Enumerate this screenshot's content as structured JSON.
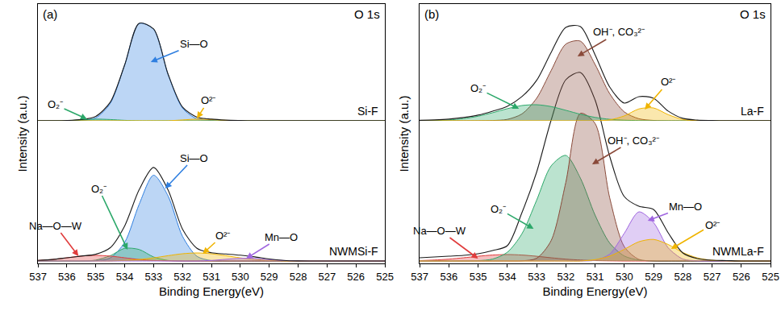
{
  "chart_data": [
    {
      "type": "line",
      "panel_label": "(a)",
      "corner_label": "O 1s",
      "x_label": "Binding Energy(eV)",
      "y_label": "Intensity (a.u.)",
      "grid": false,
      "tick_labels": "x",
      "xlim": [
        537,
        525
      ],
      "xticks": [
        537,
        536,
        535,
        534,
        533,
        532,
        531,
        530,
        529,
        528,
        527,
        526,
        525
      ],
      "x": [
        537,
        536.5,
        536,
        535.5,
        535,
        534.5,
        534,
        533.5,
        533,
        532.5,
        532,
        531.5,
        531,
        530.5,
        530,
        529.5,
        529,
        528.5,
        528,
        527.5,
        527,
        526.5,
        526,
        525.5,
        525
      ],
      "spectra": [
        {
          "name": "Si-F",
          "ylim": [
            0,
            145
          ],
          "envelope": {
            "color": "#1a1a1a",
            "values": [
              0,
              0,
              0.3,
              1.5,
              5.5,
              23,
              69.5,
              121,
              114,
              58,
              17,
              4.5,
              2,
              0.8,
              0.3,
              0,
              0,
              0,
              0,
              0,
              0,
              0,
              0,
              0,
              0
            ]
          },
          "components": [
            {
              "name": "Si—O",
              "color": "#2f7fe0",
              "values": [
                0,
                0,
                0,
                0.3,
                3.6,
                21.5,
                69.4,
                120.9,
                113.6,
                57.7,
                15.8,
                2.3,
                0.2,
                0,
                0,
                0,
                0,
                0,
                0,
                0,
                0,
                0,
                0,
                0,
                0
              ]
            },
            {
              "name": "O₂⁻",
              "color": "#2ca86a",
              "values": [
                0,
                0,
                0.2,
                1,
                2,
                1.5,
                0.5,
                0,
                0,
                0,
                0,
                0,
                0,
                0,
                0,
                0,
                0,
                0,
                0,
                0,
                0,
                0,
                0,
                0,
                0
              ]
            },
            {
              "name": "O²⁻",
              "color": "#f0b400",
              "values": [
                0,
                0,
                0,
                0,
                0,
                0,
                0,
                0,
                0,
                0,
                1,
                2,
                1.5,
                0.5,
                0,
                0,
                0,
                0,
                0,
                0,
                0,
                0,
                0,
                0,
                0
              ]
            }
          ]
        },
        {
          "name": "NWMSi-F",
          "ylim": [
            -3,
            319
          ],
          "envelope": {
            "color": "#1a1a1a",
            "values": [
              0.7,
              1.9,
              4,
              6.1,
              8.4,
              16.5,
              43.6,
              88.4,
              116.1,
              88.3,
              39.6,
              15.8,
              10.2,
              8.7,
              7.2,
              5.1,
              2.5,
              0.8,
              0.1,
              0,
              0,
              0,
              0,
              0,
              0
            ]
          },
          "components": [
            {
              "name": "Si—O",
              "color": "#2f7fe0",
              "values": [
                0,
                0,
                0,
                0,
                0.3,
                3.8,
                23.1,
                70.3,
                106.5,
                80.8,
                30.6,
                5.8,
                0.5,
                0,
                0,
                0,
                0,
                0,
                0,
                0,
                0,
                0,
                0,
                0,
                0
              ]
            },
            {
              "name": "O₂⁻",
              "color": "#2ca86a",
              "values": [
                0,
                0,
                0,
                0,
                1.1,
                6.6,
                15.7,
                14.3,
                5,
                0.7,
                0,
                0,
                0,
                0,
                0,
                0,
                0,
                0,
                0,
                0,
                0,
                0,
                0,
                0,
                0
              ]
            },
            {
              "name": "Na—O—W",
              "color": "#e03c3c",
              "values": [
                0.7,
                1.9,
                4,
                6.1,
                7,
                6.1,
                4,
                1.9,
                0.7,
                0.2,
                0,
                0,
                0,
                0,
                0,
                0,
                0,
                0,
                0,
                0,
                0,
                0,
                0,
                0,
                0
              ]
            },
            {
              "name": "O²⁻",
              "color": "#f0b400",
              "values": [
                0,
                0,
                0,
                0,
                0,
                0,
                0.8,
                1.9,
                3.9,
                6.6,
                9,
                10,
                9,
                6.6,
                3.9,
                1.9,
                0.8,
                0.2,
                0,
                0,
                0,
                0,
                0,
                0,
                0
              ]
            },
            {
              "name": "Mn—O",
              "color": "#a066e0",
              "values": [
                0,
                0,
                0,
                0,
                0,
                0,
                0,
                0,
                0,
                0,
                0,
                0,
                0.7,
                2.1,
                3.3,
                3.2,
                1.7,
                0.6,
                0.1,
                0,
                0,
                0,
                0,
                0,
                0
              ]
            }
          ]
        }
      ]
    },
    {
      "type": "line",
      "panel_label": "(b)",
      "corner_label": "O 1s",
      "x_label": "Binding Energy(eV)",
      "y_label": "Intensity (a.u.)",
      "grid": false,
      "tick_labels": "x",
      "xlim": [
        537,
        525
      ],
      "xticks": [
        537,
        536,
        535,
        534,
        533,
        532,
        531,
        530,
        529,
        528,
        527,
        526,
        525
      ],
      "x": [
        537,
        536.5,
        536,
        535.5,
        535,
        534.5,
        534,
        533.5,
        533,
        532.5,
        532,
        531.5,
        531,
        530.5,
        530,
        529.5,
        529,
        528.5,
        528,
        527.5,
        527,
        526.5,
        526,
        525.5,
        525
      ],
      "spectra": [
        {
          "name": "La-F",
          "ylim": [
            0,
            145
          ],
          "envelope": {
            "color": "#1a1a1a",
            "values": [
              0.5,
              1,
              2,
              4,
              7,
              12,
              18,
              30,
              50,
              85,
              116,
              117,
              82,
              42,
              22,
              30,
              28,
              12,
              3,
              0.8,
              0.3,
              0,
              0,
              0,
              0
            ]
          },
          "components": [
            {
              "name": "OH⁻, CO₃²⁻",
              "color": "#8a4a3a",
              "values": [
                0,
                0,
                0,
                0,
                0,
                0.3,
                1.7,
                8.5,
                27.8,
                62.4,
                95.2,
                98.9,
                70,
                33.7,
                11,
                2.5,
                0.4,
                0,
                0,
                0,
                0,
                0,
                0,
                0,
                0
              ]
            },
            {
              "name": "O₂⁻",
              "color": "#2ca86a",
              "values": [
                0.1,
                0.3,
                1,
                2.6,
                5.6,
                10,
                15,
                18.9,
                19.9,
                17.6,
                13,
                8.1,
                4.2,
                1.8,
                0.7,
                0.2,
                0,
                0,
                0,
                0,
                0,
                0,
                0,
                0,
                0
              ]
            },
            {
              "name": "O²⁻",
              "color": "#f0b400",
              "values": [
                0,
                0,
                0,
                0,
                0,
                0,
                0,
                0,
                0,
                0,
                0,
                0,
                0,
                1.1,
                6,
                14.7,
                15.9,
                7.6,
                1.6,
                0.2,
                0,
                0,
                0,
                0,
                0
              ]
            }
          ]
        },
        {
          "name": "NWMLa-F",
          "ylim": [
            -3,
            319
          ],
          "envelope": {
            "color": "#1a1a1a",
            "values": [
              4,
              5,
              6,
              7,
              9,
              13,
              19,
              60,
              110,
              175,
              225,
              234,
              200,
              130,
              80,
              68,
              64,
              35,
              10,
              3,
              1,
              0.5,
              0,
              0,
              0
            ]
          },
          "components": [
            {
              "name": "Na—O—W",
              "color": "#e03c3c",
              "values": [
                0.5,
                1.2,
                2.3,
                4,
                5.9,
                7.4,
                8,
                7.4,
                5.9,
                4,
                2.3,
                1.2,
                0.5,
                0.2,
                0,
                0,
                0,
                0,
                0,
                0,
                0,
                0,
                0,
                0,
                0
              ]
            },
            {
              "name": "O₂⁻",
              "color": "#2ca86a",
              "values": [
                0,
                0,
                0,
                0,
                0.4,
                2.4,
                10.8,
                33.8,
                75.2,
                118.1,
                131.1,
                102.8,
                57,
                22.3,
                6.2,
                1.2,
                0.1,
                0,
                0,
                0,
                0,
                0,
                0,
                0,
                0
              ]
            },
            {
              "name": "OH⁻, CO₃²⁻",
              "color": "#8a4a3a",
              "values": [
                0,
                0,
                0,
                0,
                0,
                0,
                0,
                0.2,
                3.3,
                25.4,
                97.5,
                183.3,
                170.8,
                78.6,
                17.8,
                2,
                0.1,
                0,
                0,
                0,
                0,
                0,
                0,
                0,
                0
              ]
            },
            {
              "name": "Mn—O",
              "color": "#a066e0",
              "values": [
                0,
                0,
                0,
                0,
                0,
                0,
                0,
                0,
                0,
                0,
                0,
                0,
                0.9,
                8.5,
                34.4,
                61,
                47.7,
                16.4,
                2.5,
                0.2,
                0,
                0,
                0,
                0,
                0
              ]
            },
            {
              "name": "O²⁻",
              "color": "#f0b400",
              "values": [
                0,
                0,
                0,
                0,
                0,
                0,
                0,
                0,
                0,
                0,
                0,
                0,
                1.7,
                6,
                14.5,
                23.9,
                26.8,
                20.5,
                10.6,
                3.8,
                0.9,
                0.2,
                0,
                0,
                0
              ]
            }
          ]
        }
      ]
    }
  ]
}
